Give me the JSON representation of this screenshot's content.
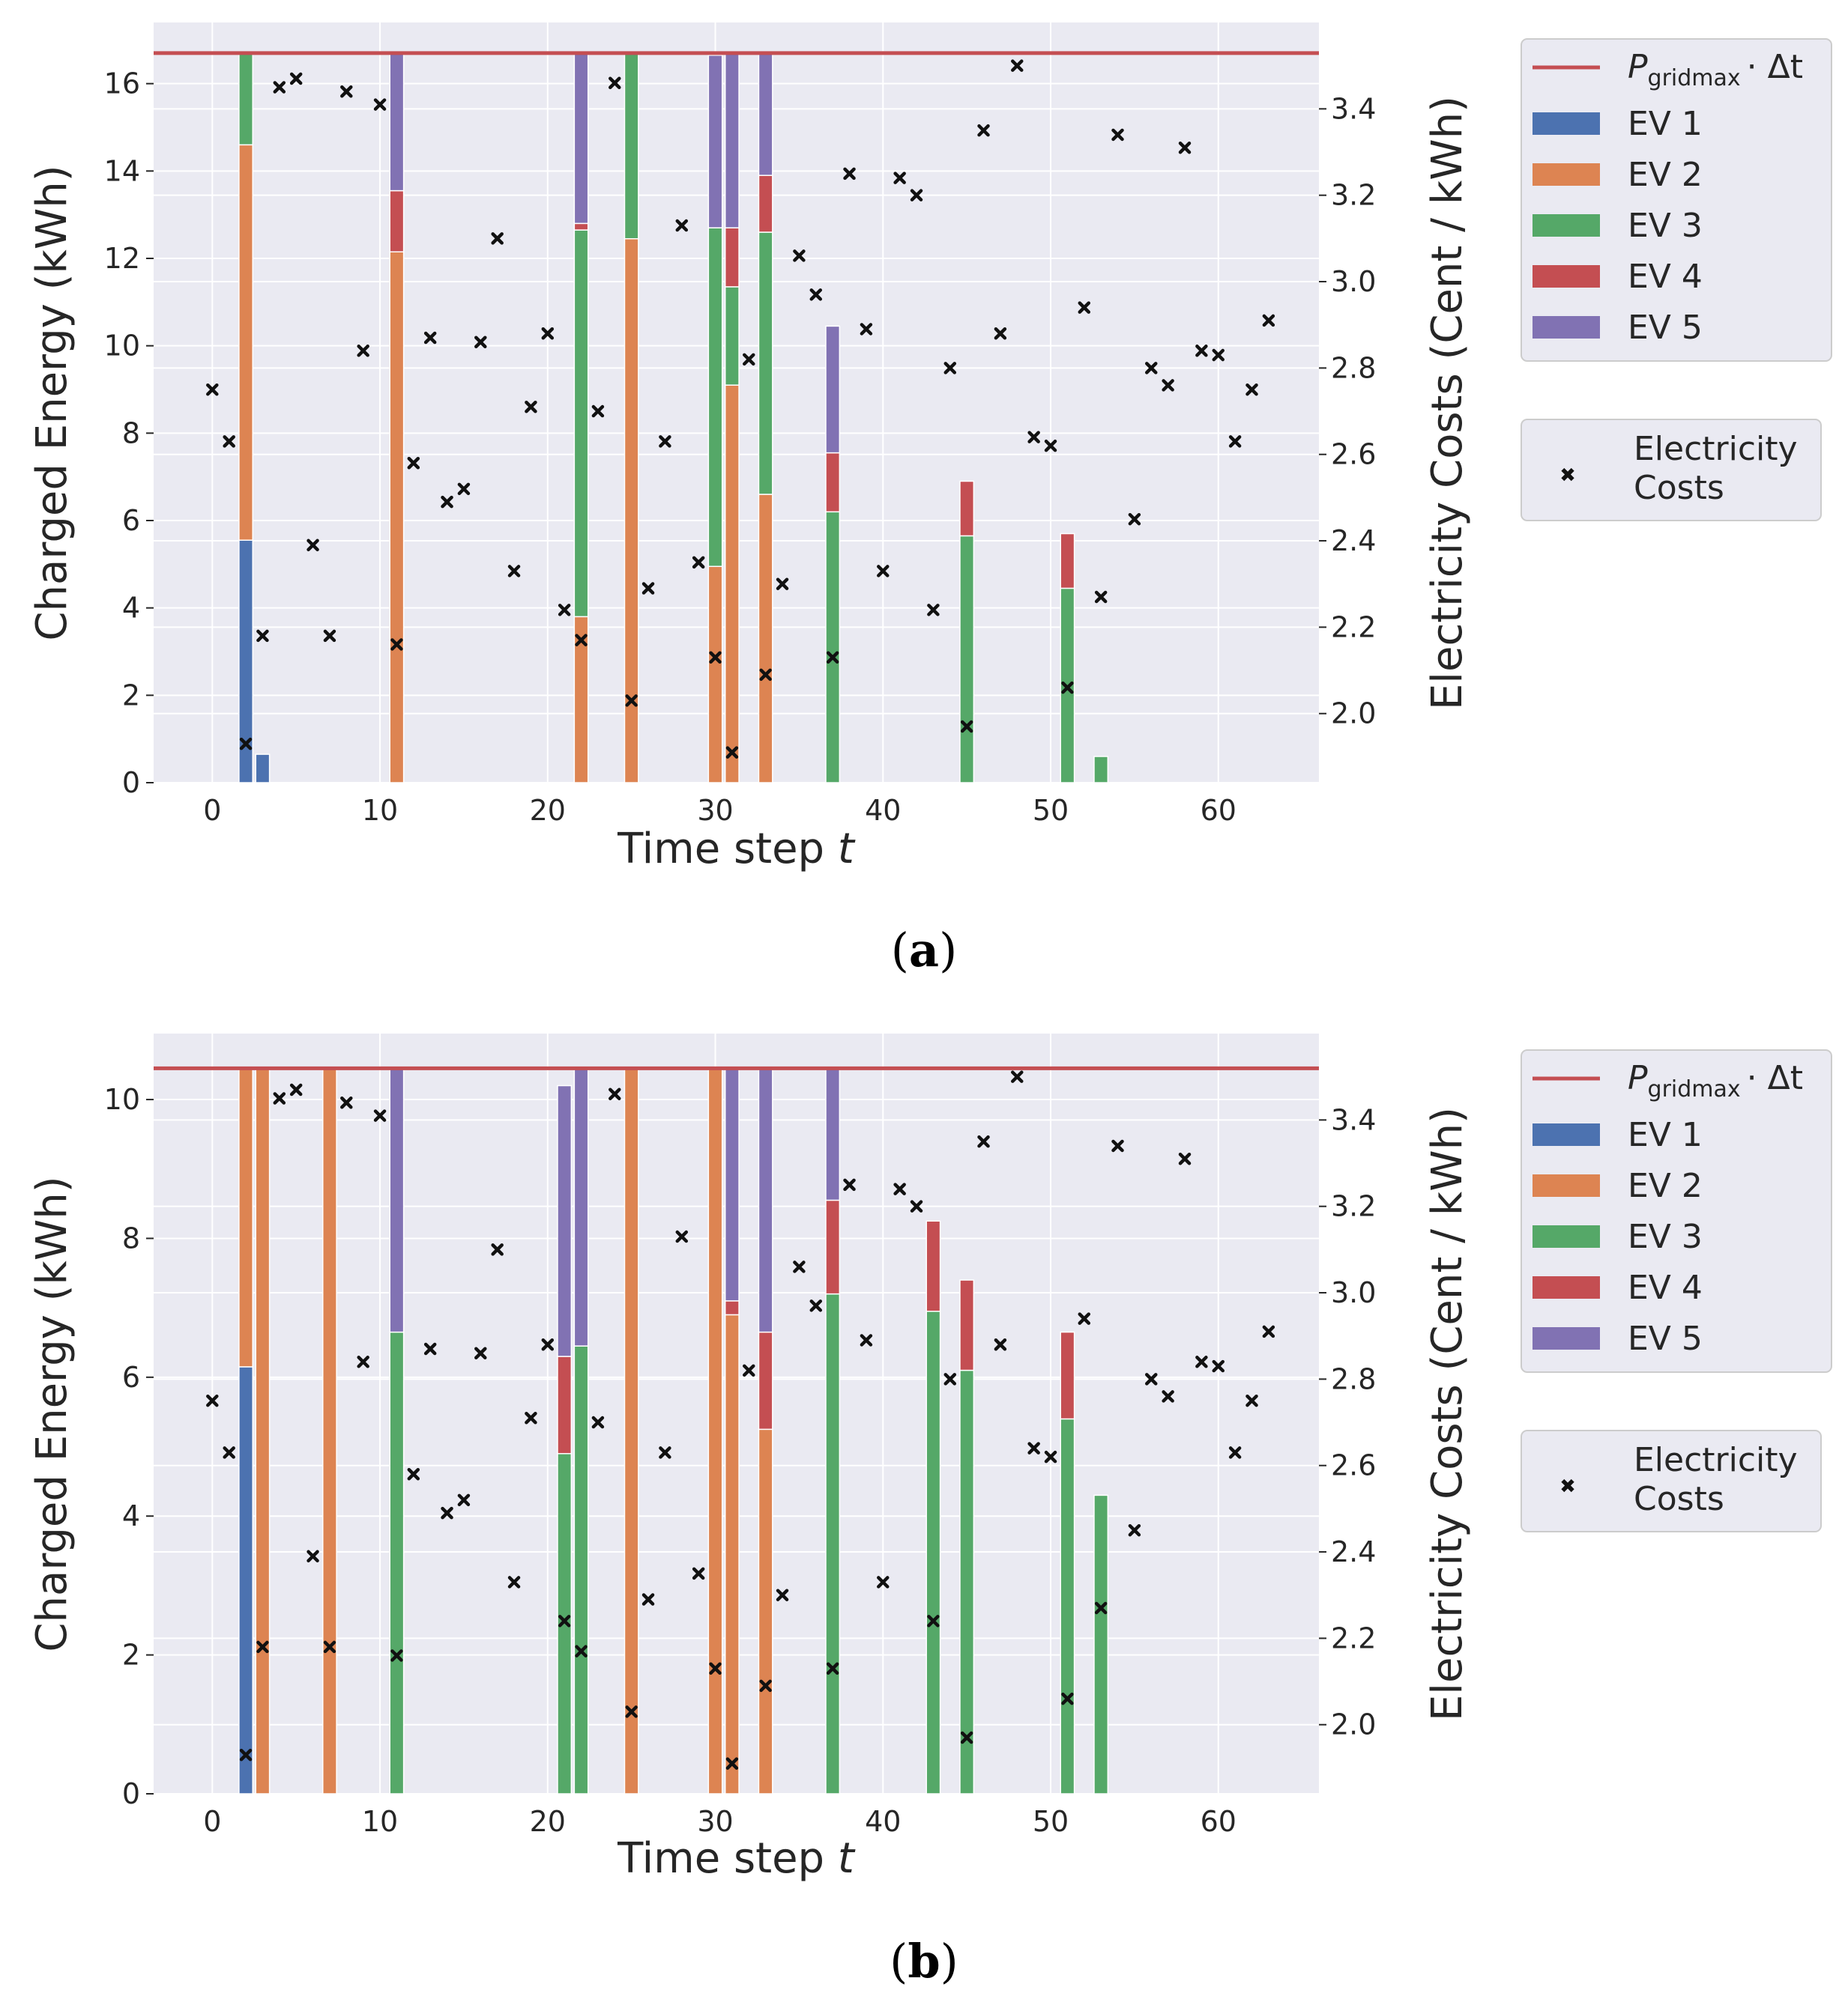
{
  "chart_data": [
    {
      "type": "bar",
      "panel": "a",
      "caption_letter": "a",
      "xlabel_text": "Time step",
      "xlabel_var": "t",
      "ylabel": "Charged Energy (kWh)",
      "y2label": "Electricity Costs (Cent / kWh)",
      "xlim": [
        -3.5,
        66
      ],
      "ylim": [
        0,
        17.4
      ],
      "y2lim": [
        1.84,
        3.6
      ],
      "xticks": [
        0,
        10,
        20,
        30,
        40,
        50,
        60
      ],
      "yticks": [
        0,
        2,
        4,
        6,
        8,
        10,
        12,
        14,
        16
      ],
      "y2ticks": [
        "2.0",
        "2.2",
        "2.4",
        "2.6",
        "2.8",
        "3.0",
        "3.2",
        "3.4"
      ],
      "grid_limit_kwh": 16.7,
      "series": [
        {
          "name": "EV 1",
          "color": "#4c72b0",
          "points": [
            [
              2,
              5.55
            ],
            [
              3,
              0.65
            ]
          ]
        },
        {
          "name": "EV 2",
          "color": "#dd8452",
          "points": [
            [
              2,
              9.05
            ],
            [
              11,
              12.15
            ],
            [
              22,
              3.8
            ],
            [
              25,
              12.45
            ],
            [
              30,
              4.95
            ],
            [
              31,
              9.1
            ],
            [
              33,
              6.6
            ]
          ]
        },
        {
          "name": "EV 3",
          "color": "#55a868",
          "points": [
            [
              2,
              2.1
            ],
            [
              22,
              8.85
            ],
            [
              25,
              4.25
            ],
            [
              30,
              7.75
            ],
            [
              31,
              2.25
            ],
            [
              33,
              6.0
            ],
            [
              37,
              6.2
            ],
            [
              45,
              5.65
            ],
            [
              51,
              4.45
            ],
            [
              53,
              0.6
            ]
          ]
        },
        {
          "name": "EV 4",
          "color": "#c44e52",
          "points": [
            [
              11,
              1.4
            ],
            [
              22,
              0.15
            ],
            [
              31,
              1.35
            ],
            [
              33,
              1.3
            ],
            [
              37,
              1.35
            ],
            [
              45,
              1.25
            ],
            [
              51,
              1.25
            ]
          ]
        },
        {
          "name": "EV 5",
          "color": "#8172b3",
          "points": [
            [
              11,
              3.15
            ],
            [
              22,
              3.9
            ],
            [
              30,
              3.95
            ],
            [
              31,
              4.0
            ],
            [
              33,
              2.8
            ],
            [
              37,
              2.9
            ]
          ]
        }
      ],
      "costs": [
        2.75,
        2.63,
        1.93,
        2.18,
        3.45,
        3.47,
        2.39,
        2.18,
        3.44,
        2.84,
        3.41,
        2.16,
        2.58,
        2.87,
        2.49,
        2.52,
        2.86,
        3.1,
        2.33,
        2.71,
        2.88,
        2.24,
        2.17,
        2.7,
        3.46,
        2.03,
        2.29,
        2.63,
        3.13,
        2.35,
        2.13,
        1.91,
        2.82,
        2.09,
        2.3,
        3.06,
        2.97,
        2.13,
        3.25,
        2.89,
        2.33,
        3.24,
        3.2,
        2.24,
        2.8,
        1.97,
        3.35,
        2.88,
        3.5,
        2.64,
        2.62,
        2.06,
        2.94,
        2.27,
        3.34,
        2.45,
        2.8,
        2.76,
        3.31,
        2.84,
        2.83,
        2.63,
        2.75,
        2.91
      ]
    },
    {
      "type": "bar",
      "panel": "b",
      "caption_letter": "b",
      "xlabel_text": "Time step",
      "xlabel_var": "t",
      "ylabel": "Charged Energy (kWh)",
      "y2label": "Electricity Costs (Cent / kWh)",
      "xlim": [
        -3.5,
        66
      ],
      "ylim": [
        0,
        10.95
      ],
      "y2lim": [
        1.84,
        3.6
      ],
      "xticks": [
        0,
        10,
        20,
        30,
        40,
        50,
        60
      ],
      "yticks": [
        0,
        2,
        4,
        6,
        8,
        10
      ],
      "y2ticks": [
        "2.0",
        "2.2",
        "2.4",
        "2.6",
        "2.8",
        "3.0",
        "3.2",
        "3.4"
      ],
      "grid_limit_kwh": 10.45,
      "series": [
        {
          "name": "EV 1",
          "color": "#4c72b0",
          "points": [
            [
              2,
              6.15
            ]
          ]
        },
        {
          "name": "EV 2",
          "color": "#dd8452",
          "points": [
            [
              2,
              4.3
            ],
            [
              3,
              10.45
            ],
            [
              7,
              10.45
            ],
            [
              25,
              10.45
            ],
            [
              30,
              10.45
            ],
            [
              31,
              6.9
            ],
            [
              33,
              5.25
            ]
          ]
        },
        {
          "name": "EV 3",
          "color": "#55a868",
          "points": [
            [
              11,
              6.65
            ],
            [
              21,
              4.9
            ],
            [
              22,
              6.45
            ],
            [
              37,
              7.2
            ],
            [
              43,
              6.95
            ],
            [
              45,
              6.1
            ],
            [
              51,
              5.4
            ],
            [
              53,
              4.3
            ]
          ]
        },
        {
          "name": "EV 4",
          "color": "#c44e52",
          "points": [
            [
              21,
              1.4
            ],
            [
              31,
              0.2
            ],
            [
              33,
              1.4
            ],
            [
              37,
              1.35
            ],
            [
              43,
              1.3
            ],
            [
              45,
              1.3
            ],
            [
              51,
              1.25
            ]
          ]
        },
        {
          "name": "EV 5",
          "color": "#8172b3",
          "points": [
            [
              11,
              3.8
            ],
            [
              21,
              3.9
            ],
            [
              22,
              4.0
            ],
            [
              31,
              3.35
            ],
            [
              33,
              3.8
            ],
            [
              37,
              1.9
            ]
          ]
        }
      ],
      "costs": [
        2.75,
        2.63,
        1.93,
        2.18,
        3.45,
        3.47,
        2.39,
        2.18,
        3.44,
        2.84,
        3.41,
        2.16,
        2.58,
        2.87,
        2.49,
        2.52,
        2.86,
        3.1,
        2.33,
        2.71,
        2.88,
        2.24,
        2.17,
        2.7,
        3.46,
        2.03,
        2.29,
        2.63,
        3.13,
        2.35,
        2.13,
        1.91,
        2.82,
        2.09,
        2.3,
        3.06,
        2.97,
        2.13,
        3.25,
        2.89,
        2.33,
        3.24,
        3.2,
        2.24,
        2.8,
        1.97,
        3.35,
        2.88,
        3.5,
        2.64,
        2.62,
        2.06,
        2.94,
        2.27,
        3.34,
        2.45,
        2.8,
        2.76,
        3.31,
        2.84,
        2.83,
        2.63,
        2.75,
        2.91
      ]
    }
  ],
  "legend": {
    "line_label_symbol": "P",
    "line_label_sub": "gridmax",
    "line_label_suffix": "· Δt",
    "line_color": "#c44e52",
    "costs_label_line1": "Electricity",
    "costs_label_line2": "Costs"
  }
}
